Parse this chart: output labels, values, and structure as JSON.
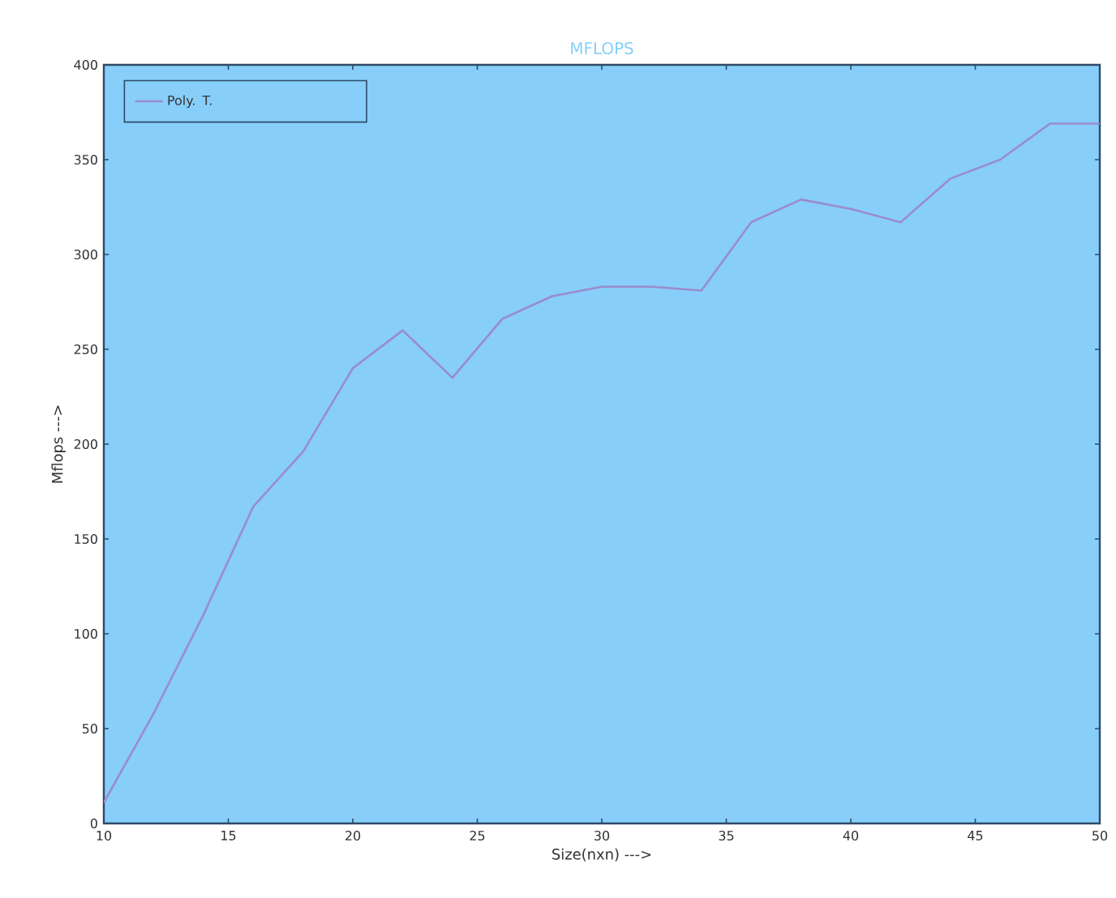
{
  "chart_data": {
    "type": "line",
    "title": "MFLOPS",
    "xlabel": "Size(nxn) --->",
    "ylabel": "Mflops --->",
    "x": [
      10,
      12,
      14,
      16,
      18,
      20,
      22,
      24,
      26,
      28,
      30,
      32,
      34,
      36,
      38,
      40,
      42,
      44,
      46,
      48,
      50
    ],
    "series": [
      {
        "name": "Poly. T.",
        "color": "#9a8ccc",
        "values": [
          11,
          58,
          110,
          167,
          196,
          240,
          260,
          235,
          266,
          278,
          283,
          283,
          281,
          317,
          329,
          324,
          317,
          340,
          350,
          369,
          369
        ]
      }
    ],
    "xlim": [
      10,
      50
    ],
    "ylim": [
      0,
      400
    ],
    "xticks": [
      10,
      15,
      20,
      25,
      30,
      35,
      40,
      45,
      50
    ],
    "yticks": [
      0,
      50,
      100,
      150,
      200,
      250,
      300,
      350,
      400
    ],
    "legend": "top left"
  }
}
